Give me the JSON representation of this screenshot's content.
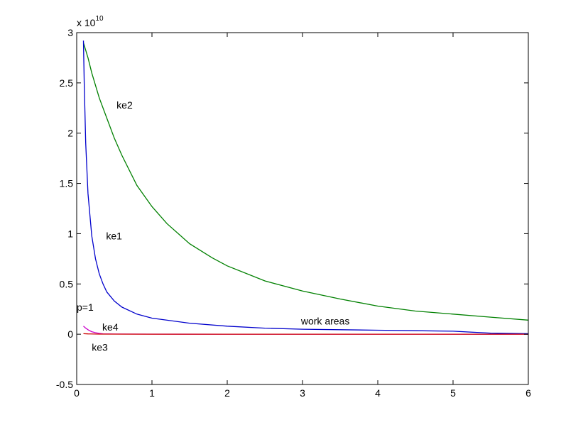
{
  "chart_data": {
    "type": "line",
    "title": "",
    "xlabel": "",
    "ylabel": "",
    "xlim": [
      0,
      6
    ],
    "ylim": [
      -0.5,
      3
    ],
    "y_multiplier": "x 10",
    "y_multiplier_exponent": "10",
    "grid": false,
    "x_ticks": [
      "0",
      "1",
      "2",
      "3",
      "4",
      "5",
      "6"
    ],
    "y_ticks": [
      "-0.5",
      "0",
      "0.5",
      "1",
      "1.5",
      "2",
      "2.5",
      "3"
    ],
    "x_tick_values": [
      0,
      1,
      2,
      3,
      4,
      5,
      6
    ],
    "y_tick_values": [
      -0.5,
      0,
      0.5,
      1,
      1.5,
      2,
      2.5,
      3
    ],
    "series": [
      {
        "color": "#008000",
        "x": [
          0.09,
          0.15,
          0.2,
          0.3,
          0.4,
          0.5,
          0.6,
          0.8,
          1.0,
          1.2,
          1.5,
          1.8,
          2.0,
          2.5,
          3.0,
          3.5,
          4.0,
          4.5,
          5.0,
          5.5,
          6.0
        ],
        "y": [
          2.9,
          2.75,
          2.6,
          2.35,
          2.15,
          1.95,
          1.78,
          1.48,
          1.27,
          1.1,
          0.9,
          0.76,
          0.68,
          0.53,
          0.43,
          0.35,
          0.28,
          0.23,
          0.2,
          0.17,
          0.14
        ]
      },
      {
        "color": "#0000cc",
        "x": [
          0.09,
          0.1,
          0.12,
          0.15,
          0.2,
          0.25,
          0.3,
          0.35,
          0.4,
          0.5,
          0.6,
          0.8,
          1.0,
          1.5,
          2.0,
          2.5,
          3.0,
          3.5,
          4.0,
          4.5,
          5.0,
          5.5,
          6.0
        ],
        "y": [
          2.92,
          2.5,
          1.9,
          1.4,
          0.98,
          0.75,
          0.6,
          0.5,
          0.42,
          0.33,
          0.27,
          0.2,
          0.16,
          0.11,
          0.08,
          0.06,
          0.05,
          0.045,
          0.04,
          0.035,
          0.03,
          0.01,
          0.005
        ]
      },
      {
        "color": "#cc00cc",
        "x": [
          0.09,
          0.12,
          0.16,
          0.2,
          0.25,
          0.3,
          0.35,
          0.5,
          1.0,
          2.0,
          3.0,
          4.0,
          5.0,
          6.0
        ],
        "y": [
          0.08,
          0.06,
          0.04,
          0.025,
          0.015,
          0.008,
          0.004,
          0.002,
          0.001,
          0.0,
          0.0,
          0.0,
          0.0,
          0.0
        ]
      },
      {
        "color": "#cc0000",
        "x": [
          0.09,
          0.15,
          0.3,
          1.0,
          2.0,
          3.0,
          4.0,
          5.0,
          6.0
        ],
        "y": [
          0.005,
          0.003,
          0.001,
          0.0,
          0.0,
          0.0,
          0.0,
          0.0,
          0.0
        ]
      }
    ],
    "annotations": [
      {
        "text": "ke2",
        "x": 0.53,
        "y": 2.28
      },
      {
        "text": "ke1",
        "x": 0.39,
        "y": 0.98
      },
      {
        "text": "p=1",
        "x": 0.0,
        "y": 0.27
      },
      {
        "text": "ke4",
        "x": 0.34,
        "y": 0.07
      },
      {
        "text": "ke3",
        "x": 0.2,
        "y": -0.13
      },
      {
        "text": "work areas",
        "x": 2.98,
        "y": 0.13
      }
    ]
  }
}
